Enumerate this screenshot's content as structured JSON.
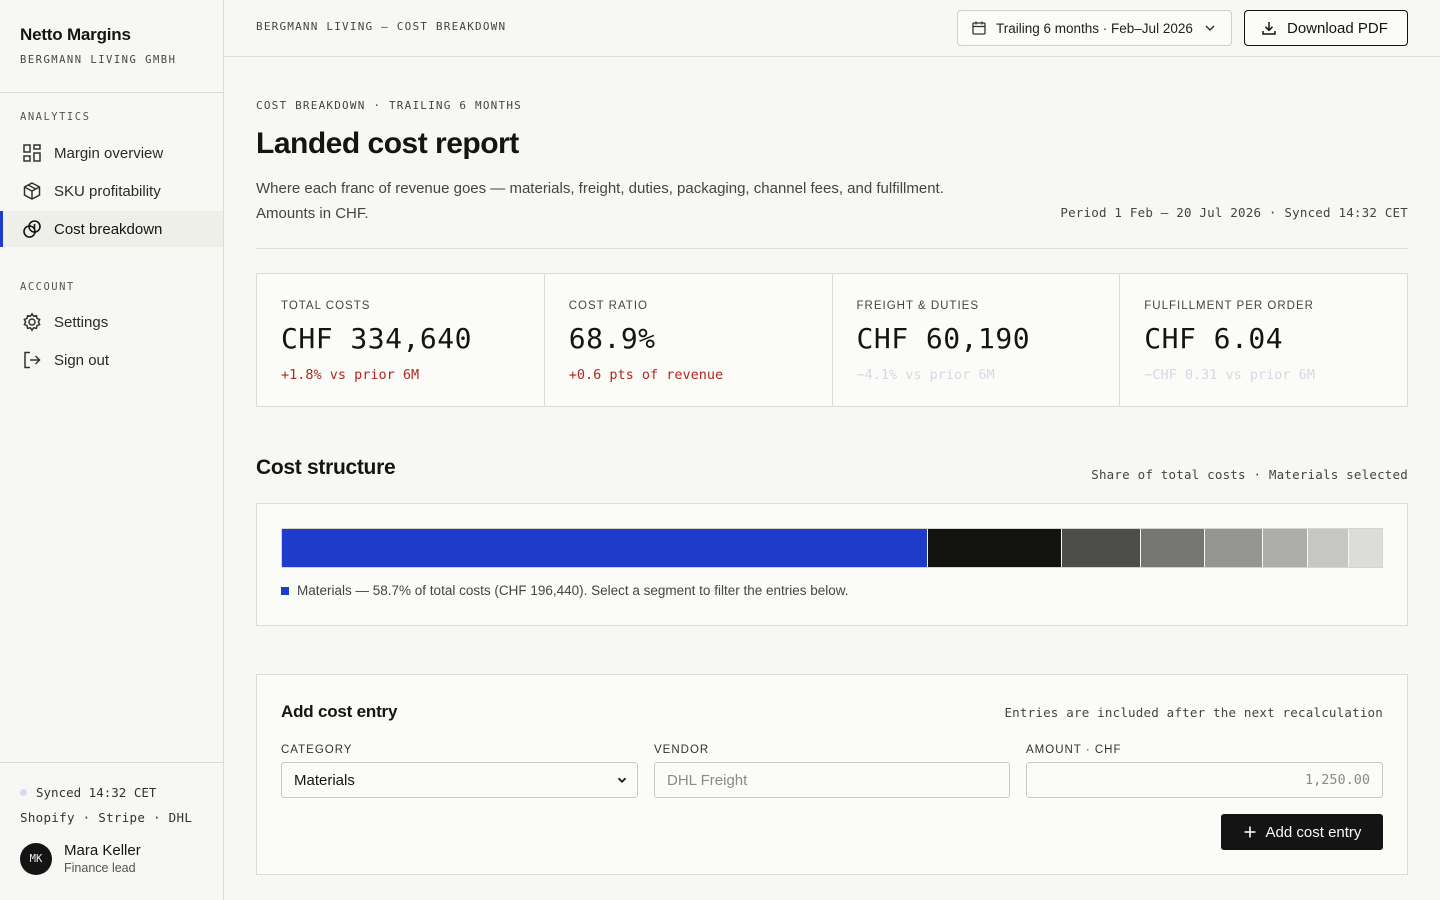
{
  "brand": {
    "name": "Netto Margins",
    "company": "BERGMANN LIVING GMBH"
  },
  "nav": {
    "analytics_label": "ANALYTICS",
    "analytics_items": [
      {
        "label": "Margin overview",
        "icon": "grid-icon"
      },
      {
        "label": "SKU profitability",
        "icon": "box-icon"
      },
      {
        "label": "Cost breakdown",
        "icon": "coins-icon",
        "active": true
      }
    ],
    "account_label": "ACCOUNT",
    "account_items": [
      {
        "label": "Settings",
        "icon": "gear-icon"
      },
      {
        "label": "Sign out",
        "icon": "sign-out-icon"
      }
    ]
  },
  "sidebar_footer": {
    "sync_status": "Synced 14:32 CET",
    "sources": "Shopify · Stripe · DHL",
    "user": {
      "initials": "MK",
      "name": "Mara Keller",
      "role": "Finance lead"
    }
  },
  "topbar": {
    "breadcrumb": "BERGMANN LIVING — COST BREAKDOWN",
    "range_label": "Trailing 6 months · Feb–Jul 2026",
    "download_label": "Download PDF"
  },
  "header": {
    "eyebrow": "COST BREAKDOWN · TRAILING 6 MONTHS",
    "title": "Landed cost report",
    "description": "Where each franc of revenue goes — materials, freight, duties, packaging, channel fees, and fulfillment. Amounts in CHF.",
    "period": "Period 1 Feb – 20 Jul 2026 · Synced 14:32 CET"
  },
  "kpis": [
    {
      "label": "TOTAL COSTS",
      "value": "CHF 334,640",
      "delta": "+1.8% vs prior 6M",
      "trend": "up"
    },
    {
      "label": "COST RATIO",
      "value": "68.9%",
      "delta": "+0.6 pts of revenue",
      "trend": "up"
    },
    {
      "label": "FREIGHT & DUTIES",
      "value": "CHF 60,190",
      "delta": "−4.1% vs prior 6M",
      "trend": "down"
    },
    {
      "label": "FULFILLMENT PER ORDER",
      "value": "CHF 6.04",
      "delta": "−CHF 0.31 vs prior 6M",
      "trend": "down"
    }
  ],
  "structure": {
    "title": "Cost structure",
    "note": "Share of total costs · Materials selected",
    "legend": "Materials — 58.7% of total costs (CHF 196,440). Select a segment to filter the entries below.",
    "segments": [
      {
        "share": 58.7,
        "color": "#1f3bcc"
      },
      {
        "share": 12.2,
        "color": "#121210"
      },
      {
        "share": 7.2,
        "color": "#4d4d4b"
      },
      {
        "share": 5.8,
        "color": "#757573"
      },
      {
        "share": 5.3,
        "color": "#959593"
      },
      {
        "share": 4.1,
        "color": "#adadab"
      },
      {
        "share": 3.7,
        "color": "#c6c6c4"
      },
      {
        "share": 3.0,
        "color": "#dcdcda"
      }
    ]
  },
  "entry_form": {
    "title": "Add cost entry",
    "note": "Entries are included after the next recalculation",
    "category_label": "CATEGORY",
    "category_value": "Materials",
    "vendor_label": "VENDOR",
    "vendor_placeholder": "DHL Freight",
    "amount_label": "AMOUNT · CHF",
    "amount_placeholder": "1,250.00",
    "submit_label": "Add cost entry"
  }
}
